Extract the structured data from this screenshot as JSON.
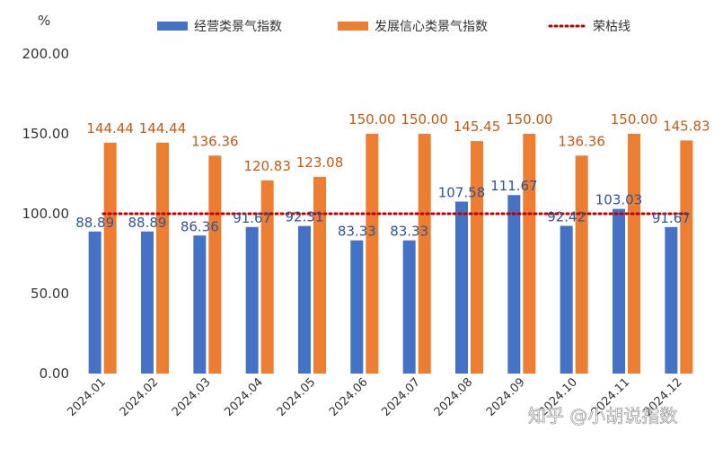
{
  "chart_data": {
    "type": "bar",
    "unit_label": "%",
    "categories": [
      "2024.01",
      "2024.02",
      "2024.03",
      "2024.04",
      "2024.05",
      "2024.06",
      "2024.07",
      "2024.08",
      "2024.09",
      "2024.10",
      "2024.11",
      "2024.12"
    ],
    "series": [
      {
        "name": "经营类景气指数",
        "color": "#4472c4",
        "label_color": "#2f5597",
        "values": [
          88.89,
          88.89,
          86.36,
          91.67,
          92.31,
          83.33,
          83.33,
          107.58,
          111.67,
          92.42,
          103.03,
          91.67
        ]
      },
      {
        "name": "发展信心类景气指数",
        "color": "#ed7d31",
        "label_color": "#c55a11",
        "values": [
          144.44,
          144.44,
          136.36,
          120.83,
          123.08,
          150.0,
          150.0,
          145.45,
          150.0,
          136.36,
          150.0,
          145.83
        ]
      }
    ],
    "reference_line": {
      "name": "荣枯线",
      "value": 100,
      "color": "#c00000",
      "style": "dotted"
    },
    "ylim": [
      0,
      200
    ],
    "yticks": [
      "0.00",
      "50.00",
      "100.00",
      "150.00",
      "200.00"
    ],
    "legend_position": "top",
    "grid": false
  },
  "watermark": "知乎 @小胡说指数"
}
